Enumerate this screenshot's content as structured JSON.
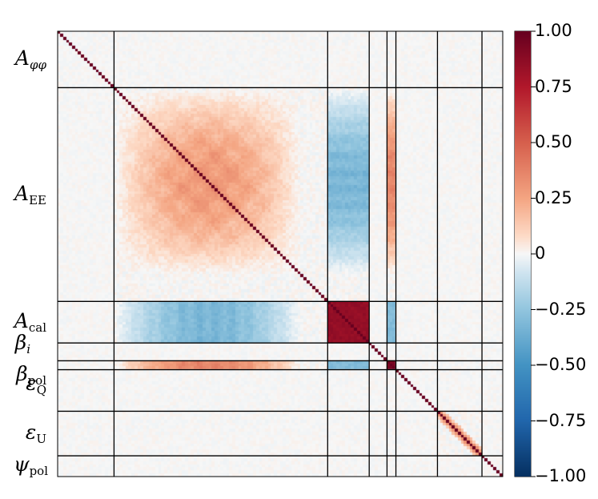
{
  "chart_data": {
    "type": "heatmap",
    "title": "",
    "xlabel": "",
    "ylabel": "",
    "matrix_size": 150,
    "blocks": [
      {
        "name": "A_phiphi",
        "start": 0,
        "end": 19
      },
      {
        "name": "A_EE",
        "start": 19,
        "end": 91
      },
      {
        "name": "A_cal",
        "start": 91,
        "end": 105
      },
      {
        "name": "beta_i",
        "start": 105,
        "end": 111
      },
      {
        "name": "beta_pol",
        "start": 111,
        "end": 114
      },
      {
        "name": "epsilon_Q",
        "start": 114,
        "end": 128
      },
      {
        "name": "epsilon_U",
        "start": 128,
        "end": 143
      },
      {
        "name": "psi_pol",
        "start": 143,
        "end": 150
      }
    ],
    "row_labels": [
      {
        "base": "A",
        "sub": "φφ",
        "sub_italic": true
      },
      {
        "base": "A",
        "sub": "EE",
        "sub_italic": false
      },
      {
        "base": "A",
        "sub": "cal",
        "sub_italic": false
      },
      {
        "base": "β",
        "sub": "i",
        "sub_italic": true
      },
      {
        "base": "β",
        "sub": "pol",
        "sub_italic": false
      },
      {
        "base": "ε",
        "sub": "Q",
        "sub_italic": false
      },
      {
        "base": "ε",
        "sub": "U",
        "sub_italic": false
      },
      {
        "base": "ψ",
        "sub": "pol",
        "sub_italic": false
      }
    ],
    "correlation_summary": [
      {
        "blocks": [
          "A_EE",
          "A_EE"
        ],
        "value": 0.35
      },
      {
        "blocks": [
          "A_EE",
          "A_cal"
        ],
        "value": -0.35
      },
      {
        "blocks": [
          "A_EE",
          "beta_pol"
        ],
        "value": 0.4
      },
      {
        "blocks": [
          "A_cal",
          "A_cal"
        ],
        "value": 0.85
      },
      {
        "blocks": [
          "beta_pol",
          "beta_pol"
        ],
        "value": 0.95
      },
      {
        "blocks": [
          "beta_pol",
          "A_cal"
        ],
        "value": -0.3
      },
      {
        "blocks": [
          "epsilon_U",
          "epsilon_U"
        ],
        "value": 0.45
      }
    ],
    "colorbar": {
      "colormap": "RdBu_r",
      "range": [
        -1.0,
        1.0
      ],
      "ticks": [
        1.0,
        0.75,
        0.5,
        0.25,
        0,
        -0.25,
        -0.5,
        -0.75,
        -1.0
      ],
      "tick_labels": [
        "1.00",
        "0.75",
        "0.50",
        "0.25",
        "0",
        "−0.25",
        "−0.50",
        "−0.75",
        "−1.00"
      ]
    }
  }
}
